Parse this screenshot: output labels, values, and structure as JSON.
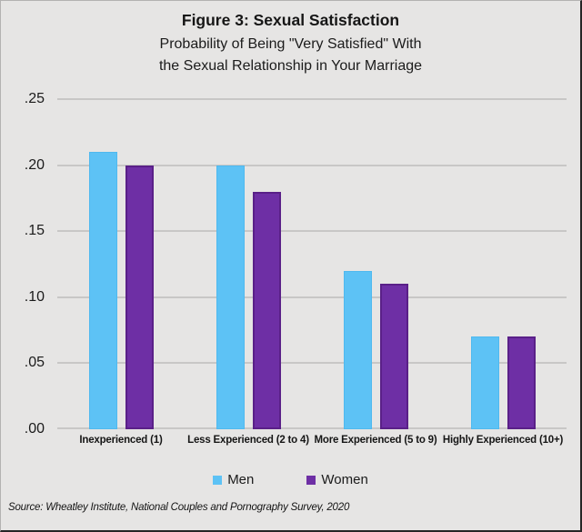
{
  "figure": {
    "title": "Figure 3: Sexual Satisfaction",
    "subtitle_line1": "Probability of Being \"Very Satisfied\" With",
    "subtitle_line2": "the Sexual Relationship in Your Marriage",
    "source": "Source: Wheatley Institute, National Couples and Pornography Survey, 2020"
  },
  "colors": {
    "background": "#e6e5e4",
    "gridline": "#c8c7c6",
    "men_fill": "#5dc2f5",
    "men_border": "#4fb9ef",
    "women_fill": "#6e2fa5",
    "women_border": "#5a2088",
    "text": "#1b1b1b"
  },
  "chart_data": {
    "type": "bar",
    "title": "Figure 3: Sexual Satisfaction",
    "subtitle": "Probability of Being \"Very Satisfied\" With the Sexual Relationship in Your Marriage",
    "categories": [
      "Inexperienced (1)",
      "Less Experienced (2 to 4)",
      "More Experienced (5 to 9)",
      "Highly Experienced (10+)"
    ],
    "series": [
      {
        "name": "Men",
        "color": "#5dc2f5",
        "values": [
          0.21,
          0.2,
          0.12,
          0.07
        ]
      },
      {
        "name": "Women",
        "color": "#6e2fa5",
        "values": [
          0.2,
          0.18,
          0.11,
          0.07
        ]
      }
    ],
    "xlabel": "",
    "ylabel": "",
    "ylim": [
      0,
      0.25
    ],
    "ytick_values": [
      0,
      0.05,
      0.1,
      0.15,
      0.2,
      0.25
    ],
    "ytick_labels": [
      ".00",
      ".05",
      ".10",
      ".15",
      ".20",
      ".25"
    ],
    "grid": true,
    "legend_position": "bottom"
  },
  "legend": {
    "items": [
      {
        "label": "Men",
        "color": "#5dc2f5"
      },
      {
        "label": "Women",
        "color": "#6e2fa5"
      }
    ]
  }
}
